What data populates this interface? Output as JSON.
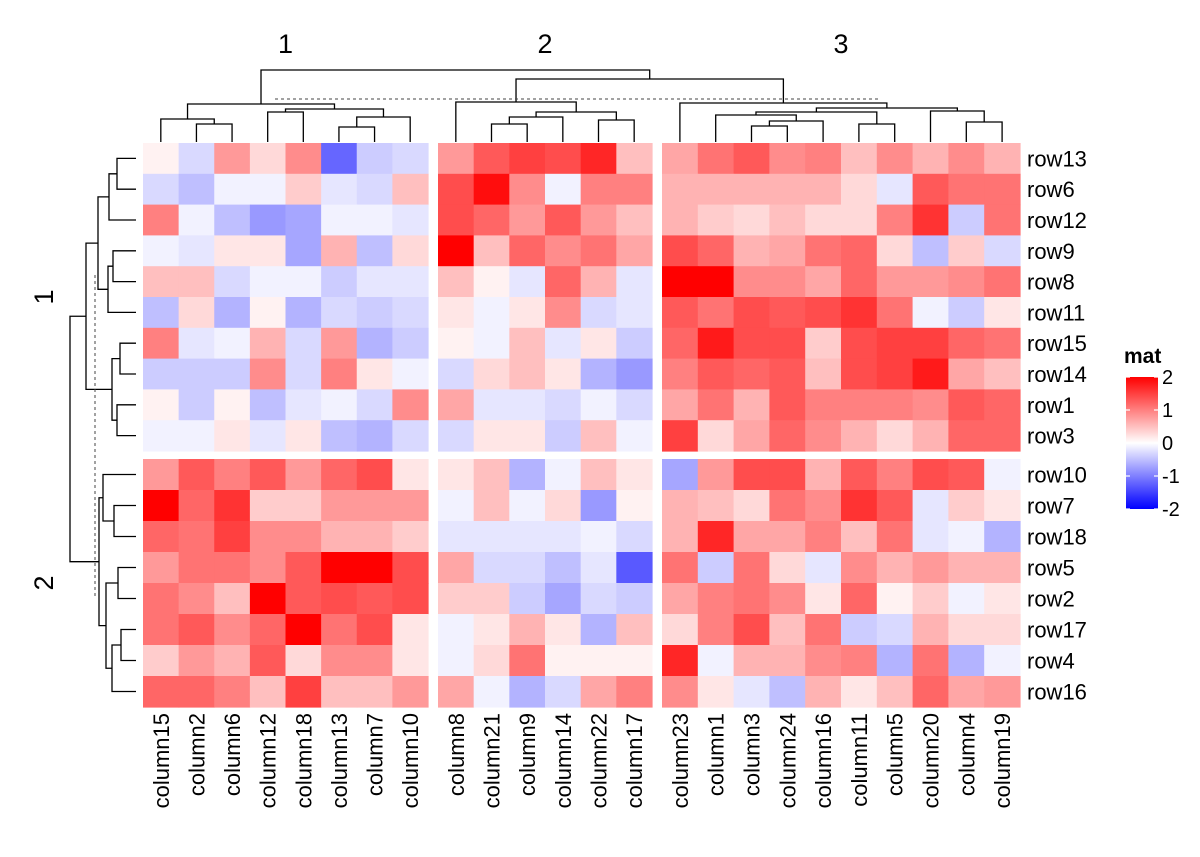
{
  "chart_data": {
    "type": "heatmap",
    "title": "",
    "legend": {
      "title": "mat",
      "ticks": [
        2,
        1,
        0,
        -1,
        -2
      ],
      "tick_labels": [
        "2",
        "1",
        "0",
        "-1",
        "-2"
      ],
      "colors": {
        "low": "#0000ff",
        "mid": "#ffffff",
        "high": "#ff0000"
      },
      "range": [
        -2,
        2
      ],
      "placement": "right"
    },
    "column_split_labels": [
      "1",
      "2",
      "3"
    ],
    "row_split_labels": [
      "1",
      "2"
    ],
    "column_groups": [
      [
        "column15",
        "column2",
        "column6",
        "column12",
        "column18",
        "column13",
        "column7",
        "column10"
      ],
      [
        "column8",
        "column21",
        "column9",
        "column14",
        "column22",
        "column17"
      ],
      [
        "column23",
        "column1",
        "column3",
        "column24",
        "column16",
        "column11",
        "column5",
        "column20",
        "column4",
        "column19"
      ]
    ],
    "row_groups": [
      [
        "row13",
        "row6",
        "row12",
        "row9",
        "row8",
        "row11",
        "row15",
        "row14",
        "row1",
        "row3"
      ],
      [
        "row10",
        "row7",
        "row18",
        "row5",
        "row2",
        "row17",
        "row4",
        "row16"
      ]
    ],
    "values": [
      [
        0.1,
        -0.3,
        0.8,
        0.3,
        0.9,
        -1.2,
        -0.4,
        -0.3,
        0.8,
        1.3,
        1.5,
        1.4,
        1.7,
        0.5,
        0.7,
        1.1,
        1.3,
        0.9,
        1.0,
        0.5,
        0.9,
        0.6,
        0.9,
        0.6
      ],
      [
        -0.3,
        -0.5,
        -0.1,
        -0.1,
        0.4,
        -0.2,
        -0.3,
        0.5,
        1.4,
        1.9,
        0.9,
        -0.1,
        1.0,
        1.0,
        0.6,
        0.6,
        0.6,
        0.6,
        0.6,
        0.3,
        -0.2,
        1.3,
        1.1,
        1.1
      ],
      [
        1.0,
        -0.1,
        -0.5,
        -0.8,
        -0.7,
        -0.1,
        -0.1,
        -0.2,
        1.4,
        1.2,
        0.8,
        1.3,
        0.8,
        0.5,
        0.6,
        0.4,
        0.3,
        0.5,
        0.3,
        0.3,
        1.0,
        1.6,
        -0.4,
        1.1
      ],
      [
        -0.1,
        -0.2,
        0.2,
        0.2,
        -0.7,
        0.6,
        -0.5,
        0.3,
        2.0,
        0.5,
        1.2,
        0.9,
        1.1,
        0.7,
        1.4,
        1.2,
        0.6,
        0.7,
        1.1,
        1.2,
        0.3,
        -0.5,
        0.4,
        -0.3
      ],
      [
        0.5,
        0.5,
        -0.3,
        -0.1,
        -0.1,
        -0.4,
        -0.2,
        -0.2,
        0.5,
        0.1,
        -0.2,
        1.2,
        0.6,
        -0.2,
        2.0,
        2.1,
        0.9,
        0.9,
        0.7,
        1.2,
        0.8,
        0.8,
        0.9,
        1.1
      ],
      [
        -0.5,
        0.3,
        -0.6,
        0.1,
        -0.6,
        -0.3,
        -0.4,
        -0.3,
        0.2,
        -0.1,
        0.2,
        0.9,
        -0.3,
        -0.2,
        1.3,
        1.1,
        1.4,
        1.3,
        1.4,
        1.6,
        1.1,
        -0.1,
        -0.4,
        0.2
      ],
      [
        1.0,
        -0.2,
        -0.1,
        0.6,
        -0.3,
        0.8,
        -0.6,
        -0.4,
        0.1,
        -0.1,
        0.5,
        -0.2,
        0.2,
        -0.4,
        1.2,
        1.8,
        1.4,
        1.4,
        0.4,
        1.4,
        1.5,
        1.5,
        1.2,
        1.1
      ],
      [
        -0.4,
        -0.4,
        -0.4,
        0.9,
        -0.3,
        1.0,
        0.2,
        -0.1,
        -0.3,
        0.3,
        0.5,
        0.2,
        -0.6,
        -0.8,
        1.0,
        1.3,
        1.2,
        1.3,
        0.5,
        1.4,
        1.5,
        1.8,
        0.7,
        0.5
      ],
      [
        0.1,
        -0.4,
        0.1,
        -0.5,
        -0.2,
        -0.1,
        -0.3,
        0.9,
        0.7,
        -0.2,
        -0.2,
        -0.3,
        -0.1,
        -0.3,
        0.7,
        1.1,
        0.6,
        1.3,
        1.0,
        1.0,
        1.0,
        0.9,
        1.3,
        1.2
      ],
      [
        -0.1,
        -0.1,
        0.2,
        -0.2,
        0.2,
        -0.5,
        -0.6,
        -0.3,
        -0.3,
        0.2,
        0.2,
        -0.4,
        0.5,
        -0.1,
        1.5,
        0.3,
        0.7,
        1.2,
        0.9,
        0.6,
        0.3,
        0.6,
        1.2,
        1.2
      ],
      [
        0.8,
        1.3,
        1.0,
        1.3,
        0.8,
        1.2,
        1.4,
        0.2,
        0.2,
        0.5,
        -0.6,
        -0.1,
        0.5,
        0.2,
        -0.7,
        0.8,
        1.4,
        1.4,
        0.6,
        1.3,
        1.0,
        1.4,
        1.3,
        -0.1
      ],
      [
        2.0,
        1.2,
        1.6,
        0.4,
        0.4,
        0.8,
        0.8,
        0.8,
        -0.1,
        0.5,
        -0.1,
        0.3,
        -0.8,
        0.1,
        0.6,
        0.5,
        0.3,
        1.1,
        0.9,
        1.6,
        1.3,
        -0.2,
        0.4,
        0.2
      ],
      [
        1.2,
        1.1,
        1.5,
        0.9,
        0.9,
        0.6,
        0.6,
        0.4,
        -0.2,
        -0.2,
        -0.2,
        -0.2,
        -0.1,
        -0.3,
        0.6,
        1.7,
        0.7,
        0.7,
        1.0,
        0.5,
        1.1,
        -0.2,
        -0.1,
        -0.6
      ],
      [
        0.8,
        1.1,
        1.1,
        0.9,
        1.3,
        2.0,
        2.0,
        1.4,
        0.7,
        -0.3,
        -0.3,
        -0.5,
        -0.2,
        -1.3,
        1.1,
        -0.4,
        1.1,
        0.3,
        -0.2,
        0.9,
        0.6,
        0.8,
        0.6,
        0.6
      ],
      [
        1.1,
        0.9,
        0.5,
        2.0,
        1.3,
        1.4,
        1.3,
        1.4,
        0.4,
        0.4,
        -0.4,
        -0.7,
        -0.3,
        -0.4,
        0.7,
        1.0,
        1.1,
        0.9,
        0.2,
        1.2,
        0.1,
        0.4,
        -0.1,
        0.2
      ],
      [
        1.1,
        1.3,
        0.9,
        1.2,
        2.0,
        1.1,
        1.4,
        0.2,
        -0.1,
        0.2,
        0.6,
        0.2,
        -0.6,
        0.5,
        0.3,
        1.0,
        1.4,
        0.5,
        1.1,
        -0.4,
        -0.3,
        0.6,
        0.3,
        0.3
      ],
      [
        0.4,
        0.8,
        0.6,
        1.3,
        0.3,
        0.9,
        0.9,
        0.2,
        -0.1,
        0.3,
        1.1,
        0.1,
        0.1,
        0.1,
        1.7,
        -0.1,
        0.6,
        0.6,
        0.9,
        1.0,
        -0.6,
        1.1,
        -0.6,
        -0.1
      ],
      [
        1.2,
        1.2,
        1.0,
        0.5,
        1.5,
        0.5,
        0.5,
        0.8,
        0.7,
        -0.1,
        -0.6,
        -0.3,
        0.7,
        1.0,
        0.9,
        0.2,
        -0.2,
        -0.5,
        0.6,
        0.2,
        0.5,
        1.2,
        0.7,
        0.8
      ]
    ]
  }
}
